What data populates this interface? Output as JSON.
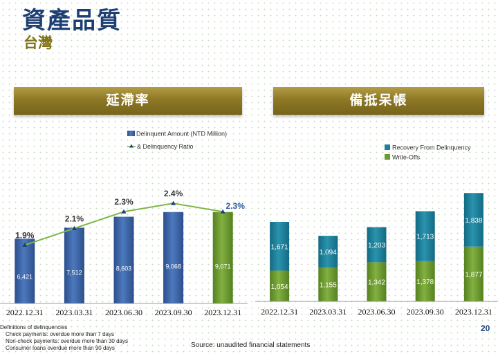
{
  "page": {
    "title": "資產品質",
    "subtitle": "台灣",
    "page_number": "20",
    "source": "Source: unaudited financial statements",
    "definitions": {
      "heading": "Definitions of delinquencies",
      "items": [
        "Check payments: overdue more than 7 days",
        "Non-check payments: overdue more than 30 days",
        "Consumer loans overdue more than 90 days"
      ]
    }
  },
  "colors": {
    "blue": "#3d66a8",
    "green": "#6d9a2e",
    "teal": "#1d7f9a",
    "line": "#7fb548",
    "marker": "#1f3f79",
    "title": "#1e3f73",
    "banner": "#8e7825"
  },
  "chart_data": [
    {
      "type": "bar",
      "title": "延滯率",
      "categories": [
        "2022.12.31",
        "2023.03.31",
        "2023.06.30",
        "2023.09.30",
        "2023.12.31"
      ],
      "series": [
        {
          "name": "Delinquent Amount (NTD Million)",
          "type": "bar",
          "values": [
            6421,
            7512,
            8603,
            9068,
            9071
          ],
          "value_labels": [
            "6,421",
            "7,512",
            "8,603",
            "9,068",
            "9,071"
          ]
        },
        {
          "name": "& Delinquency Ratio",
          "type": "line",
          "values": [
            1.9,
            2.1,
            2.3,
            2.4,
            2.3
          ],
          "value_labels": [
            "1.9%",
            "2.1%",
            "2.3%",
            "2.4%",
            "2.3%"
          ]
        }
      ],
      "highlighted_category": "2023.12.31",
      "ylim": [
        0,
        12000
      ],
      "y2lim": [
        1.2,
        2.65
      ],
      "legend": "top-right"
    },
    {
      "type": "bar",
      "stacked": true,
      "title": "備抵呆帳",
      "categories": [
        "2022.12.31",
        "2023.03.31",
        "2023.06.30",
        "2023.09.30",
        "2023.12.31"
      ],
      "series": [
        {
          "name": "Write-Offs",
          "values": [
            1054,
            1155,
            1342,
            1378,
            1877
          ],
          "value_labels": [
            "1,054",
            "1,155",
            "1,342",
            "1,378",
            "1,877"
          ]
        },
        {
          "name": "Recovery From Delinquency",
          "values": [
            1671,
            1094,
            1203,
            1713,
            1838
          ],
          "value_labels": [
            "1,671",
            "1,094",
            "1,203",
            "1,713",
            "1,838"
          ]
        }
      ],
      "ylim": [
        0,
        4100
      ],
      "legend": "top-left"
    }
  ]
}
